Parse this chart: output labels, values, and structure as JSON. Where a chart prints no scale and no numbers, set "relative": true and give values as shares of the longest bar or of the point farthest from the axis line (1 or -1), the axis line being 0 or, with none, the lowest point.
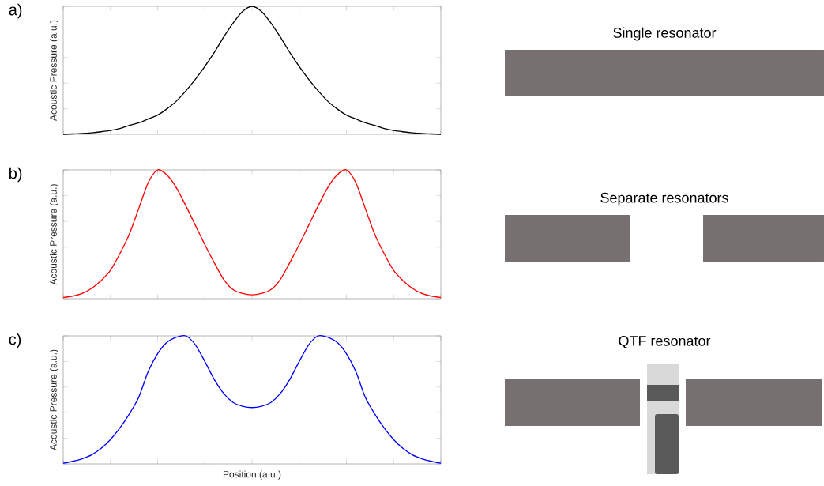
{
  "chart_data": [
    {
      "type": "line",
      "title": "a)",
      "ylabel": "Acoustic Pressure (a.u.)",
      "relative": true,
      "tick_labels": false,
      "grid": false,
      "categories": [
        null,
        null,
        null,
        null,
        null,
        null,
        null,
        null,
        null,
        null,
        null,
        null,
        null,
        null,
        null,
        null,
        null,
        null,
        null,
        null,
        null,
        null,
        null,
        null,
        null,
        null,
        null,
        null,
        null,
        null,
        null,
        null,
        null,
        null,
        null,
        null,
        null,
        null,
        null,
        null,
        null
      ],
      "series": [
        {
          "color": "#000000",
          "values": [
            0.0,
            0.003,
            0.006,
            0.012,
            0.02,
            0.03,
            0.045,
            0.07,
            0.09,
            0.12,
            0.15,
            0.2,
            0.26,
            0.34,
            0.43,
            0.53,
            0.64,
            0.76,
            0.87,
            0.96,
            1.0,
            0.96,
            0.87,
            0.76,
            0.64,
            0.53,
            0.43,
            0.34,
            0.26,
            0.2,
            0.15,
            0.12,
            0.09,
            0.07,
            0.045,
            0.03,
            0.02,
            0.012,
            0.006,
            0.003,
            0.0
          ]
        }
      ]
    },
    {
      "type": "other",
      "title": "Single resonator"
    },
    {
      "type": "line",
      "title": "b)",
      "ylabel": "Acoustic Pressure (a.u.)",
      "relative": true,
      "tick_labels": false,
      "grid": false,
      "categories": [
        null,
        null,
        null,
        null,
        null,
        null,
        null,
        null,
        null,
        null,
        null,
        null,
        null,
        null,
        null,
        null,
        null,
        null,
        null,
        null,
        null,
        null,
        null,
        null,
        null,
        null,
        null,
        null,
        null,
        null,
        null,
        null,
        null,
        null,
        null,
        null,
        null,
        null,
        null,
        null,
        null
      ],
      "series": [
        {
          "color": "#ff0000",
          "values": [
            0.01,
            0.02,
            0.04,
            0.08,
            0.14,
            0.22,
            0.35,
            0.5,
            0.7,
            0.9,
            1.0,
            0.96,
            0.86,
            0.72,
            0.57,
            0.42,
            0.28,
            0.15,
            0.07,
            0.04,
            0.03,
            0.04,
            0.07,
            0.15,
            0.28,
            0.42,
            0.57,
            0.72,
            0.86,
            0.96,
            1.0,
            0.9,
            0.7,
            0.5,
            0.35,
            0.22,
            0.14,
            0.08,
            0.04,
            0.02,
            0.01
          ]
        }
      ]
    },
    {
      "type": "other",
      "title": "Separate resonators"
    },
    {
      "type": "line",
      "title": "c)",
      "ylabel": "Acoustic Pressure (a.u.)",
      "xlabel": "Position (a.u.)",
      "relative": true,
      "tick_labels": false,
      "grid": false,
      "categories": [
        null,
        null,
        null,
        null,
        null,
        null,
        null,
        null,
        null,
        null,
        null,
        null,
        null,
        null,
        null,
        null,
        null,
        null,
        null,
        null,
        null,
        null,
        null,
        null,
        null,
        null,
        null,
        null,
        null,
        null,
        null,
        null,
        null,
        null,
        null,
        null,
        null,
        null,
        null,
        null,
        null
      ],
      "series": [
        {
          "color": "#0000ff",
          "values": [
            0.005,
            0.02,
            0.04,
            0.07,
            0.12,
            0.19,
            0.28,
            0.39,
            0.52,
            0.72,
            0.86,
            0.95,
            0.99,
            1.0,
            0.93,
            0.8,
            0.66,
            0.55,
            0.48,
            0.45,
            0.44,
            0.45,
            0.48,
            0.55,
            0.66,
            0.8,
            0.93,
            1.0,
            0.99,
            0.95,
            0.86,
            0.72,
            0.52,
            0.39,
            0.28,
            0.19,
            0.12,
            0.07,
            0.04,
            0.02,
            0.005
          ]
        }
      ]
    },
    {
      "type": "other",
      "title": "QTF resonator"
    }
  ]
}
